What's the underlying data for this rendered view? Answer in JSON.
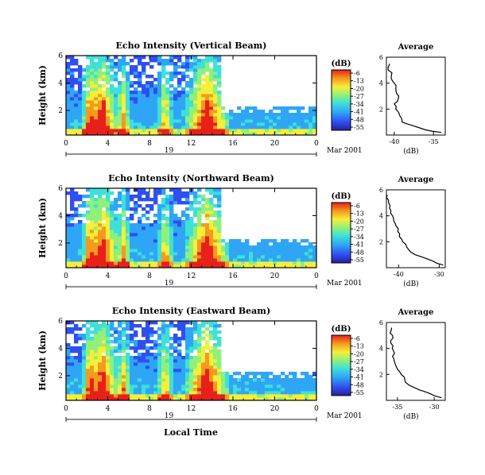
{
  "figure": {
    "xlabel_bottom": "Local Time",
    "date_label": "19",
    "month_label_1": "Mar 2001",
    "month_label_2": "Mar 2001",
    "month_label_3": "Mar 2001",
    "cbar_unit": "(dB)",
    "avg_title": "Average",
    "avg_xlabel": "(dB)"
  },
  "chart_data": [
    {
      "type": "heatmap",
      "title": "Echo Intensity (Vertical Beam)",
      "ylabel": "Height (km)",
      "xlabel": "",
      "x_ticks": [
        "0",
        "4",
        "8",
        "12",
        "16",
        "20",
        "0"
      ],
      "xlim": [
        0,
        24
      ],
      "y_ticks": [
        "2",
        "4",
        "6"
      ],
      "ylim": [
        0.2,
        6
      ],
      "colorbar": {
        "label": "(dB)",
        "ticks": [
          "-6",
          "-13",
          "-20",
          "-27",
          "-34",
          "-41",
          "-48",
          "-55"
        ],
        "range": [
          -55,
          -6
        ]
      },
      "intense_columns_hours": [
        2.2,
        3.5,
        5.5,
        9.5,
        13.5
      ],
      "profile": {
        "title": "Average",
        "xlabel": "(dB)",
        "x_ticks": [
          "-40",
          "-35"
        ],
        "xlim": [
          -41,
          -33.5
        ],
        "y_ticks": [
          "2",
          "4",
          "6"
        ],
        "heights": [
          0.2,
          0.4,
          0.7,
          1.0,
          1.5,
          2.0,
          2.4,
          2.8,
          3.2,
          3.6,
          4.0,
          4.4,
          4.8,
          5.2,
          5.5
        ],
        "values": [
          -34.0,
          -36.0,
          -37.5,
          -39.0,
          -39.3,
          -39.8,
          -40.0,
          -39.5,
          -39.7,
          -39.8,
          -40.0,
          -40.4,
          -40.3,
          -40.8,
          -40.6
        ]
      }
    },
    {
      "type": "heatmap",
      "title": "Echo Intensity (Northward Beam)",
      "ylabel": "Height (km)",
      "xlabel": "",
      "x_ticks": [
        "0",
        "4",
        "8",
        "12",
        "16",
        "20",
        "0"
      ],
      "xlim": [
        0,
        24
      ],
      "y_ticks": [
        "2",
        "4",
        "6"
      ],
      "ylim": [
        0.2,
        6
      ],
      "colorbar": {
        "label": "(dB)",
        "ticks": [
          "-6",
          "-13",
          "-20",
          "-27",
          "-34",
          "-41",
          "-48",
          "-55"
        ],
        "range": [
          -55,
          -6
        ]
      },
      "intense_columns_hours": [
        2.2,
        3.5,
        5.5,
        9.5,
        13.5
      ],
      "profile": {
        "title": "Average",
        "xlabel": "(dB)",
        "x_ticks": [
          "-40",
          "-30"
        ],
        "xlim": [
          -43,
          -28.5
        ],
        "y_ticks": [
          "2",
          "4",
          "6"
        ],
        "heights": [
          0.2,
          0.5,
          0.8,
          1.2,
          1.6,
          2.0,
          2.4,
          2.8,
          3.2,
          3.6,
          4.0,
          4.4,
          4.8,
          5.2,
          5.6
        ],
        "values": [
          -29.0,
          -31.5,
          -34.0,
          -37.0,
          -38.0,
          -39.0,
          -39.8,
          -40.2,
          -40.6,
          -41.2,
          -41.5,
          -41.9,
          -42.1,
          -42.5,
          -42.8
        ]
      }
    },
    {
      "type": "heatmap",
      "title": "Echo Intensity (Eastward Beam)",
      "ylabel": "Height (km)",
      "xlabel": "Local Time",
      "x_ticks": [
        "0",
        "4",
        "8",
        "12",
        "16",
        "20",
        "0"
      ],
      "xlim": [
        0,
        24
      ],
      "y_ticks": [
        "2",
        "4",
        "6"
      ],
      "ylim": [
        0.2,
        6
      ],
      "colorbar": {
        "label": "(dB)",
        "ticks": [
          "-6",
          "-13",
          "-20",
          "-27",
          "-34",
          "-41",
          "-48",
          "-55"
        ],
        "range": [
          -55,
          -6
        ]
      },
      "intense_columns_hours": [
        2.2,
        3.5,
        5.5,
        9.5,
        13.5
      ],
      "profile": {
        "title": "Average",
        "xlabel": "(dB)",
        "x_ticks": [
          "-35",
          "-30"
        ],
        "xlim": [
          -36.5,
          -28.5
        ],
        "y_ticks": [
          "2",
          "4",
          "6"
        ],
        "heights": [
          0.2,
          0.5,
          0.8,
          1.2,
          1.6,
          2.0,
          2.4,
          2.8,
          3.2,
          3.6,
          4.0,
          4.4,
          4.8,
          5.2,
          5.6
        ],
        "values": [
          -29.0,
          -30.5,
          -32.0,
          -33.5,
          -34.0,
          -34.5,
          -35.0,
          -35.3,
          -35.5,
          -35.4,
          -35.7,
          -35.9,
          -35.6,
          -36.0,
          -35.8
        ]
      }
    }
  ]
}
